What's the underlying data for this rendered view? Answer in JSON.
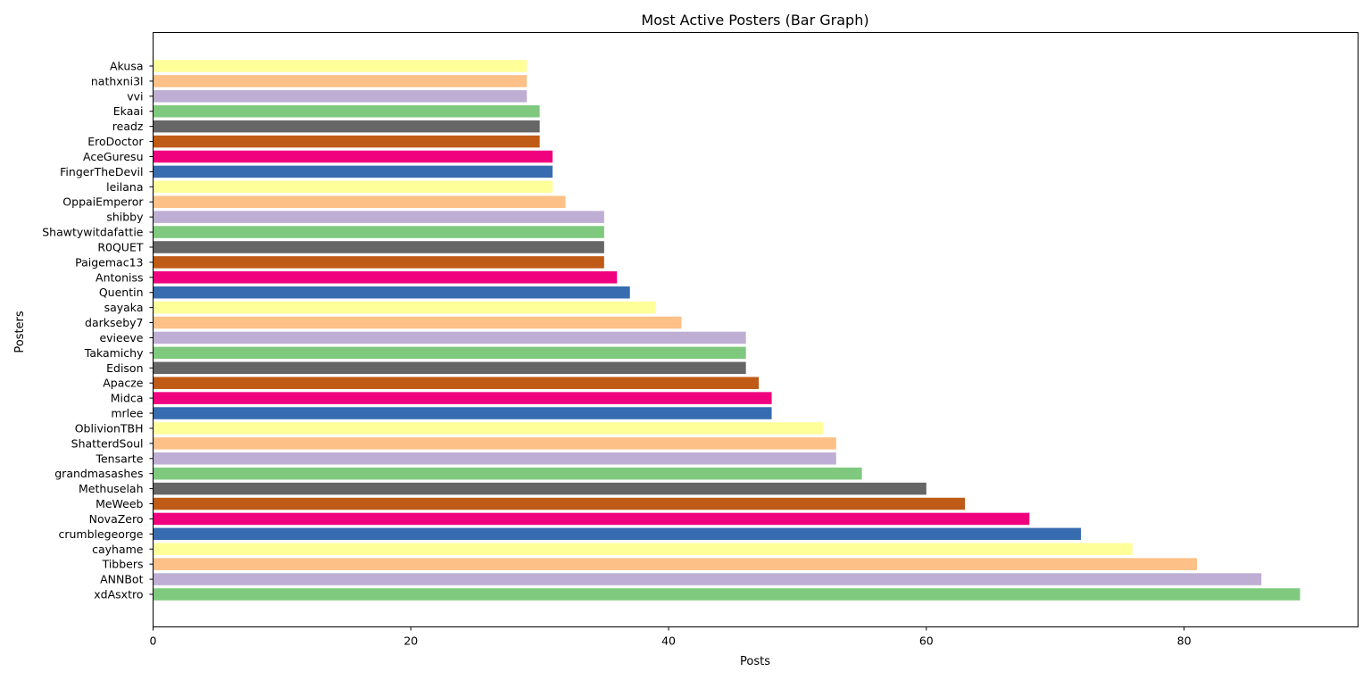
{
  "chart_data": {
    "type": "bar",
    "orientation": "horizontal",
    "title": "Most Active Posters (Bar Graph)",
    "xlabel": "Posts",
    "ylabel": "Posters",
    "xlim": [
      0,
      93.5
    ],
    "xticks": [
      0,
      20,
      40,
      60,
      80
    ],
    "grid": false,
    "legend": "none",
    "categories": [
      "xdAsxtro",
      "ANNBot",
      "Tibbers",
      "cayhame",
      "crumblegeorge",
      "NovaZero",
      "MeWeeb",
      "Methuselah",
      "grandmasashes",
      "Tensarte",
      "ShatterdSoul",
      "OblivionTBH",
      "mrlee",
      "Midca",
      "Apacze",
      "Edison",
      "Takamichy",
      "evieeve",
      "darkseby7",
      "sayaka",
      "Quentin",
      "Antoniss",
      "Paigemac13",
      "R0QUET",
      "Shawtywitdafattie",
      "shibby",
      "OppaiEmperor",
      "leilana",
      "FingerTheDevil",
      "AceGuresu",
      "EroDoctor",
      "readz",
      "Ekaai",
      "vvi",
      "nathxni3l",
      "Akusa"
    ],
    "values": [
      89,
      86,
      81,
      76,
      72,
      68,
      63,
      60,
      55,
      53,
      53,
      52,
      48,
      48,
      47,
      46,
      46,
      46,
      41,
      39,
      37,
      36,
      35,
      35,
      35,
      35,
      32,
      31,
      31,
      31,
      30,
      30,
      30,
      29,
      29,
      29
    ],
    "colors": [
      "#7fc97f",
      "#beaed4",
      "#fdc086",
      "#ffff99",
      "#386cb0",
      "#f0027f",
      "#bf5b17",
      "#666666"
    ]
  }
}
